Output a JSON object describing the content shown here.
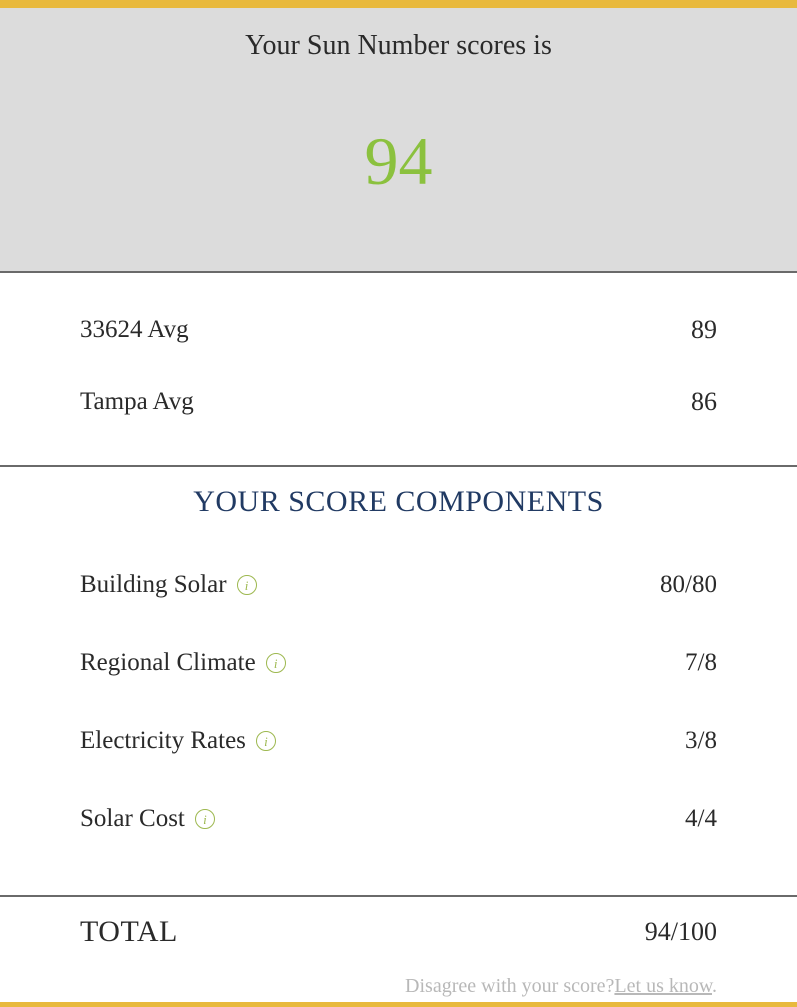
{
  "colors": {
    "accent_yellow": "#e8b93d",
    "hero_bg": "#dcdcdc",
    "score_green": "#8bc13e",
    "title_navy": "#213a63",
    "text_dark": "#2a2a2a",
    "info_green": "#9db84f",
    "muted_gray": "#b8b8b8",
    "divider": "#6a6a6a"
  },
  "hero": {
    "title": "Your Sun Number scores is",
    "score": "94"
  },
  "averages": [
    {
      "label": "33624 Avg",
      "value": "89"
    },
    {
      "label": "Tampa Avg",
      "value": "86"
    }
  ],
  "components": {
    "title": "YOUR SCORE COMPONENTS",
    "items": [
      {
        "label": "Building Solar",
        "value": "80/80"
      },
      {
        "label": "Regional Climate",
        "value": "7/8"
      },
      {
        "label": "Electricity Rates",
        "value": "3/8"
      },
      {
        "label": "Solar Cost",
        "value": "4/4"
      }
    ]
  },
  "total": {
    "label": "TOTAL",
    "value": "94/100"
  },
  "footer": {
    "disagree_text": "Disagree with your score?",
    "link_text": "Let us know",
    "period": "."
  }
}
